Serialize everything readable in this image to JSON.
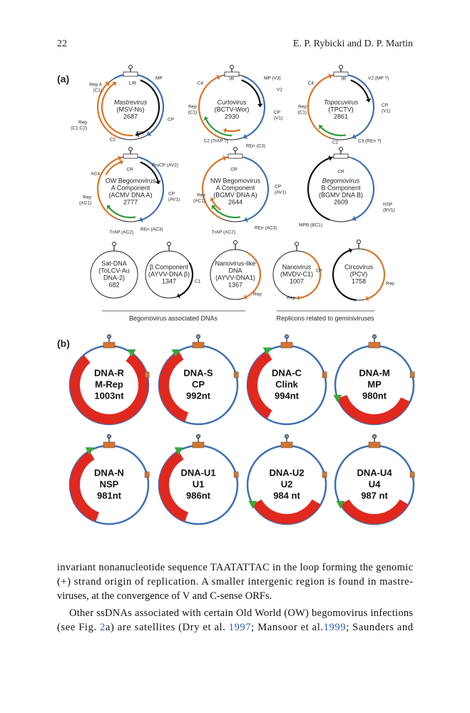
{
  "header": {
    "page_number": "22",
    "authors": "E. P. Rybicki and D. P. Martin"
  },
  "figure": {
    "panel_a": {
      "label": "(a)",
      "genomes": [
        {
          "lines": [
            "Mastrevirus",
            "(MSV-Ns)",
            "2687"
          ],
          "annotations": [
            "LIR",
            "MP",
            "Rep A",
            "(C1)",
            "CP",
            "Rep",
            "(C1:C2)",
            "C2",
            "SIR"
          ]
        },
        {
          "lines": [
            "Curtovirus",
            "(BCTV-Wor)",
            "2930"
          ],
          "annotations": [
            "IR",
            "C4",
            "MP (V3)",
            "V2",
            "Rep",
            "(C1)",
            "CP",
            "(V1)",
            "C2 (TrAP ?)",
            "REn (C3)"
          ]
        },
        {
          "lines": [
            "Topocuvirus",
            "(TPCTV)",
            "2861"
          ],
          "annotations": [
            "IR",
            "C4",
            "V2 (MP ?)",
            "Rep",
            "(C1)",
            "CP",
            "(V1)",
            "C2",
            "C3 (REn ?)"
          ]
        },
        {
          "lines": [
            "OW Begomovirus",
            "A Component",
            "(ACMV DNA A)",
            "2777"
          ],
          "annotations": [
            "CR",
            "ProCP (AV2)",
            "AC4",
            "Rep",
            "(AC1)",
            "CP",
            "(AV1)",
            "TrAP (AC2)",
            "REn (AC3)"
          ]
        },
        {
          "lines": [
            "NW Begomovirus",
            "A Component",
            "(BGMV DNA A)",
            "2644"
          ],
          "annotations": [
            "CR",
            "CP",
            "(AV1)",
            "Rep",
            "(AC1)",
            "TrAP (AC2)",
            "REn (AC3)"
          ]
        },
        {
          "lines": [
            "Begomovirus",
            "B Component",
            "(BGMV DNA B)",
            "2609"
          ],
          "annotations": [
            "CR",
            "NSP",
            "(BV1)",
            "MPB (BC1)"
          ]
        },
        {
          "lines": [
            "Sat-DNA",
            "(ToLCV-Au",
            "DNA-2)",
            "682"
          ],
          "annotations": []
        },
        {
          "lines": [
            "β Component",
            "(AYVV-DNA β)",
            "1347"
          ],
          "annotations": [
            "C1"
          ]
        },
        {
          "lines": [
            "Nanovirus-like",
            "DNA",
            "(AYVV-DNA1)",
            "1367"
          ],
          "annotations": [
            "Rep"
          ]
        },
        {
          "lines": [
            "Nanovirus",
            "(MVDV-C1)",
            "1007"
          ],
          "annotations": [
            "Rep"
          ]
        },
        {
          "lines": [
            "Circovirus",
            "(PCV)",
            "1758"
          ],
          "annotations": [
            "CP",
            "Rep"
          ]
        }
      ],
      "captions": [
        "Begomovirus associated DNAs",
        "Replicons related to geminiviruses"
      ]
    },
    "panel_b": {
      "label": "(b)",
      "genomes": [
        {
          "lines": [
            "DNA-R",
            "M-Rep",
            "1003nt"
          ]
        },
        {
          "lines": [
            "DNA-S",
            "CP",
            "992nt"
          ]
        },
        {
          "lines": [
            "DNA-C",
            "Clink",
            "994nt"
          ]
        },
        {
          "lines": [
            "DNA-M",
            "MP",
            "980nt"
          ]
        },
        {
          "lines": [
            "DNA-N",
            "NSP",
            "981nt"
          ]
        },
        {
          "lines": [
            "DNA-U1",
            "U1",
            "986nt"
          ]
        },
        {
          "lines": [
            "DNA-U2",
            "U2",
            "984 nt"
          ]
        },
        {
          "lines": [
            "DNA-U4",
            "U4",
            "987 nt"
          ]
        }
      ]
    }
  },
  "body": {
    "lines": [
      [
        "invariant nonanucleotide sequence TAATATTAC in the loop forming the genomic"
      ],
      [
        "(+) strand origin of replication. A smaller intergenic region is found in mastre-"
      ],
      [
        "viruses, at the convergence of V and C-sense ORFs."
      ],
      [
        "Other ssDNAs associated with certain Old World (OW) begomovirus infections"
      ],
      [
        "(see Fig. ",
        "2",
        "a) are satellites (Dry et al. ",
        "1997",
        "; Mansoor et al.",
        "1999",
        "; Saunders and"
      ]
    ]
  }
}
